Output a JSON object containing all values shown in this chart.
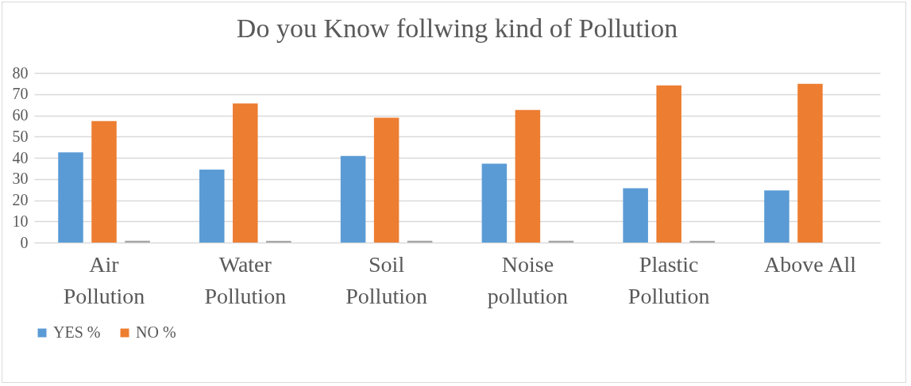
{
  "chart_data": {
    "type": "bar",
    "title": "Do you Know follwing kind of Pollution",
    "categories": [
      "Air Pollution",
      "Water Pollution",
      "Soil Pollution",
      "Noise pollution",
      "Plastic Pollution",
      "Above All"
    ],
    "series": [
      {
        "name": "YES %",
        "color": "#5b9bd5",
        "values": [
          42.5,
          34.4,
          40.8,
          37.2,
          25.6,
          24.6
        ]
      },
      {
        "name": "NO %",
        "color": "#ed7d31",
        "values": [
          57.3,
          65.6,
          58.9,
          62.5,
          74.1,
          74.9
        ]
      },
      {
        "color": "#a5a5a5",
        "values": [
          0.8,
          0.8,
          0.8,
          0.8,
          0.8,
          null
        ]
      }
    ],
    "ylim": [
      0,
      80
    ],
    "yticks": [
      0,
      10,
      20,
      30,
      40,
      50,
      60,
      70,
      80
    ],
    "grid": "y",
    "legend": "bottom"
  }
}
